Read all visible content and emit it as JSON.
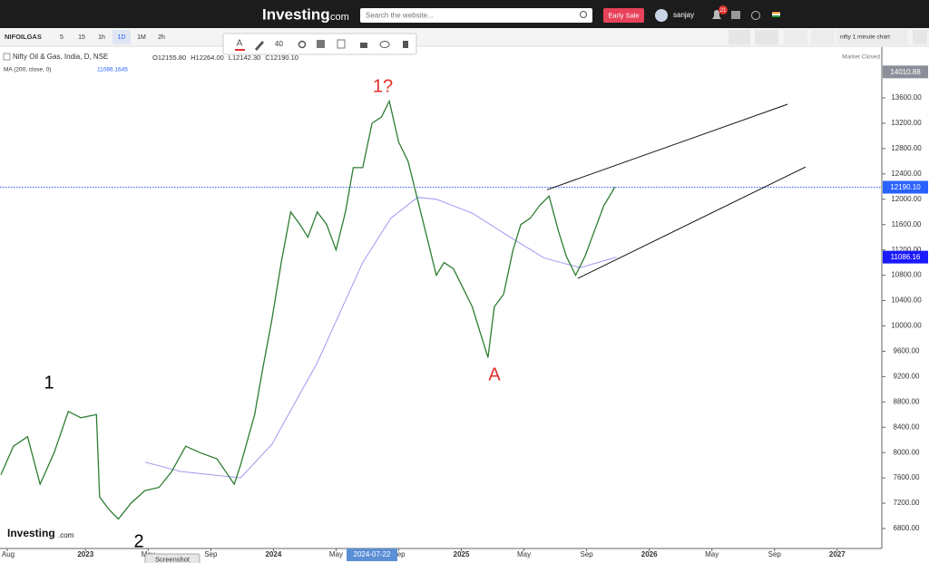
{
  "header": {
    "logo": "Investing",
    "logo_suffix": ".com",
    "search_placeholder": "Search the website...",
    "promo_button": "Early Sale",
    "username": "sanjay",
    "notification_count": "21"
  },
  "toolbar": {
    "symbol": "NIFOILGAS",
    "intervals": [
      "5",
      "15",
      "1h",
      "1D",
      "1M",
      "2h"
    ],
    "line_width": "40",
    "layout_name": "nifty 1 minute chart"
  },
  "legend": {
    "instrument": "Nifty Oil & Gas, India, D, NSE",
    "ohlc": [
      "O12155.80",
      "H12264.00",
      "L12142.30",
      "C12190.10"
    ],
    "indicator": "MA (200, close, 0)",
    "indicator_value": "11086.1645",
    "status": "Market Closed"
  },
  "watermark": {
    "logo": "Investing",
    "suffix": ".com"
  },
  "tooltip": "Screenshot",
  "chart_data": {
    "type": "line",
    "series": [
      {
        "color": "#2e7d32",
        "x": [
          -0.4,
          0.4,
          1.3,
          2.1,
          3.0,
          3.9,
          4.7,
          5.7,
          5.9,
          6.5,
          7.1,
          7.9,
          8.8,
          9.7,
          10.5,
          11.4,
          12.3,
          13.4,
          14.5,
          14.9,
          15.8,
          16.3,
          16.9,
          17.5,
          18.1,
          18.7,
          19.2,
          19.8,
          20.4,
          21.0,
          21.6,
          22.1,
          22.7,
          23.3,
          23.9,
          24.4,
          25.0,
          25.6,
          26.2,
          26.8,
          27.4,
          27.9,
          28.5,
          29.1,
          29.7,
          30.2,
          30.7,
          31.1,
          31.7,
          32.3,
          32.8,
          33.4,
          34.0,
          34.6,
          35.2,
          35.7,
          36.3,
          36.9,
          37.5,
          38.1,
          38.8
        ],
        "values": [
          7650,
          8100,
          8250,
          7500,
          8000,
          8650,
          8550,
          8600,
          7300,
          7100,
          6950,
          7200,
          7400,
          7450,
          7700,
          8100,
          8000,
          7900,
          7500,
          7800,
          8600,
          9300,
          10100,
          11000,
          11800,
          11600,
          11400,
          11800,
          11600,
          11200,
          11800,
          12500,
          12500,
          13200,
          13300,
          13550,
          12900,
          12600,
          12000,
          11400,
          10800,
          11000,
          10900,
          10600,
          10300,
          9900,
          9500,
          10300,
          10500,
          11200,
          11600,
          11700,
          11900,
          12050,
          11500,
          11100,
          10800,
          11100,
          11500,
          11900,
          12190.1
        ]
      },
      {
        "color": "#9b9bf0",
        "x": [
          8.8,
          11.1,
          14.9,
          16.9,
          19.8,
          22.7,
          24.5,
          26.2,
          27.4,
          29.7,
          32.0,
          34.3,
          36.6,
          38.9
        ],
        "values": [
          7850,
          7700,
          7600,
          8130,
          9420,
          11000,
          11700,
          12030,
          12000,
          11780,
          11420,
          11070,
          10920,
          11086.16
        ]
      }
    ],
    "trend_lines": [
      {
        "x": [
          34.47,
          49.83
        ],
        "y": [
          12150,
          13500
        ]
      },
      {
        "x": [
          36.44,
          50.98
        ],
        "y": [
          10750,
          12510
        ]
      }
    ],
    "xlim": [
      -0.46,
      55.85
    ],
    "xticks": [
      {
        "value": 0,
        "label": "Aug"
      },
      {
        "value": 5,
        "label": "2023"
      },
      {
        "value": 9,
        "label": "May"
      },
      {
        "value": 13,
        "label": "Sep"
      },
      {
        "value": 17,
        "label": "2024"
      },
      {
        "value": 21,
        "label": "May"
      },
      {
        "value": 25,
        "label": "Sep"
      },
      {
        "value": 29,
        "label": "2025"
      },
      {
        "value": 33,
        "label": "May"
      },
      {
        "value": 37,
        "label": "Sep"
      },
      {
        "value": 41,
        "label": "2026"
      },
      {
        "value": 45,
        "label": "May"
      },
      {
        "value": 49,
        "label": "Sep"
      },
      {
        "value": 53,
        "label": "2027"
      }
    ],
    "ylim": [
      6485,
      14402
    ],
    "yticks": [
      {
        "value": 6800,
        "label": "6800.00"
      },
      {
        "value": 7200,
        "label": "7200.00"
      },
      {
        "value": 7600,
        "label": "7600.00"
      },
      {
        "value": 8000,
        "label": "8000.00"
      },
      {
        "value": 8400,
        "label": "8400.00"
      },
      {
        "value": 8800,
        "label": "8800.00"
      },
      {
        "value": 9200,
        "label": "9200.00"
      },
      {
        "value": 9600,
        "label": "9600.00"
      },
      {
        "value": 10000,
        "label": "10000.00"
      },
      {
        "value": 10400,
        "label": "10400.00"
      },
      {
        "value": 10800,
        "label": "10800.00"
      },
      {
        "value": 11200,
        "label": "11200.00"
      },
      {
        "value": 11600,
        "label": "11600.00"
      },
      {
        "value": 12000,
        "label": "12000.00"
      },
      {
        "value": 12400,
        "label": "12400.00"
      },
      {
        "value": 12800,
        "label": "12800.00"
      },
      {
        "value": 13200,
        "label": "13200.00"
      },
      {
        "value": 13600,
        "label": "13600.00"
      }
    ],
    "last_price": {
      "value": 12190.1,
      "label": "12190.10"
    },
    "ma_last": {
      "value": 11086.16,
      "label": "11086.16"
    },
    "high_tag": {
      "value": 14010.88,
      "label": "14010.88"
    },
    "crosshair_label": "2024-07-22",
    "annotations": [
      {
        "text": "1?",
        "color": "#e0302a"
      },
      {
        "text": "1",
        "color": "#000000"
      },
      {
        "text": "2",
        "color": "#000000"
      },
      {
        "text": "A",
        "color": "#e0302a"
      }
    ]
  }
}
